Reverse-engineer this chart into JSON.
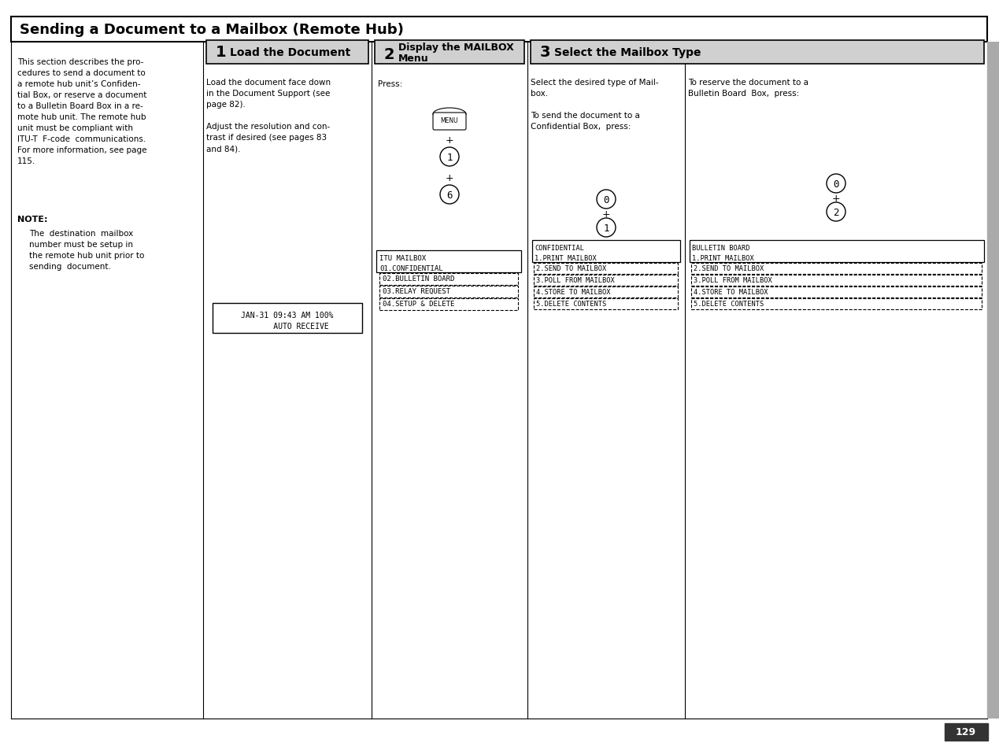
{
  "title": "Sending a Document to a Mailbox (Remote Hub)",
  "page_number": "129",
  "bg_color": "#ffffff",
  "left_text": [
    "This section describes the pro-",
    "cedures to send a document to",
    "a remote hub unit’s Confiden-",
    "tial Box, or reserve a document",
    "to a Bulletin Board Box in a re-",
    "mote hub unit. The remote hub",
    "unit must be compliant with",
    "ITU-T  F-code  communications.",
    "For more information, see page",
    "115."
  ],
  "note_label": "NOTE:",
  "note_text": [
    "The  destination  mailbox",
    "number must be setup in",
    "the remote hub unit prior to",
    "sending  document."
  ],
  "step1_title": "Load the Document",
  "step1_text": [
    "Load the document face down",
    "in the Document Support (see",
    "page 82).",
    "",
    "Adjust the resolution and con-",
    "trast if desired (see pages 83",
    "and 84)."
  ],
  "step1_display": [
    "JAN-31 09:43 AM 100%",
    "      AUTO RECEIVE"
  ],
  "step2_title": "Display the MAILBOX\nMenu",
  "step2_text": [
    "Press:"
  ],
  "step2_keys": [
    "MENU",
    "+",
    "1",
    "+",
    "6"
  ],
  "step2_menu_lines": [
    "ITU MAILBOX",
    "01.CONFIDENTIAL",
    "02.BULLETIN BOARD",
    "03.RELAY REQUEST",
    "04.SETUP & DELETE"
  ],
  "step3_title": "Select the Mailbox Type",
  "step3_left_text": [
    "Select the desired type of Mail-",
    "box.",
    "",
    "To send the document to a",
    "Confidential Box,  press:"
  ],
  "step3_left_keys": [
    "0",
    "+",
    "1"
  ],
  "step3_left_display": [
    "CONFIDENTIAL",
    "1.PRINT MAILBOX",
    "2.SEND TO MAILBOX",
    "3.POLL FROM MAILBOX",
    "4.STORE TO MAILBOX",
    "5.DELETE CONTENTS"
  ],
  "step3_right_text": [
    "To reserve the document to a",
    "Bulletin Board  Box,  press:"
  ],
  "step3_right_keys": [
    "0",
    "+",
    "2"
  ],
  "step3_right_display": [
    "BULLETIN BOARD",
    "1.PRINT MAILBOX",
    "2.SEND TO MAILBOX",
    "3.POLL FROM MAILBOX",
    "4.STORE TO MAILBOX",
    "5.DELETE CONTENTS"
  ]
}
